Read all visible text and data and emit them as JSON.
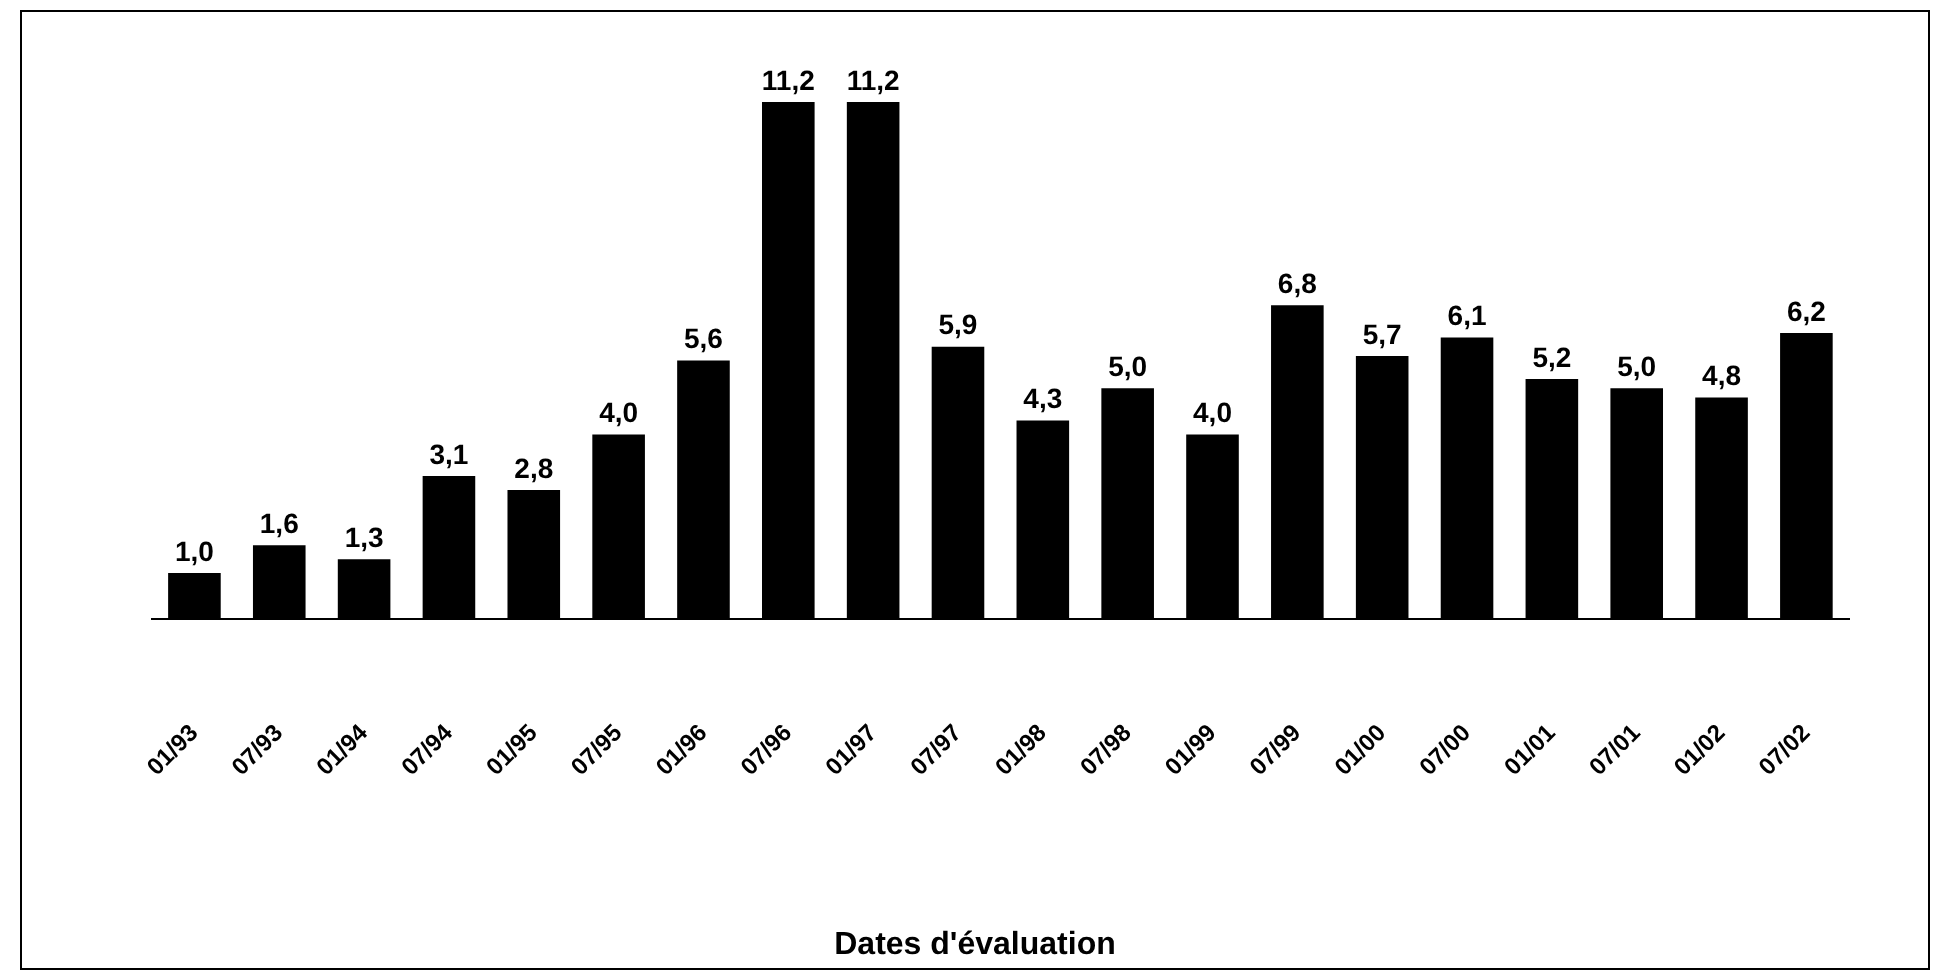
{
  "chart_data": {
    "type": "bar",
    "xlabel": "Dates d'évaluation",
    "categories": [
      "01/93",
      "07/93",
      "01/94",
      "07/94",
      "01/95",
      "07/95",
      "01/96",
      "07/96",
      "01/97",
      "07/97",
      "01/98",
      "07/98",
      "01/99",
      "07/99",
      "01/00",
      "07/00",
      "01/01",
      "07/01",
      "01/02",
      "07/02"
    ],
    "values": [
      1.0,
      1.6,
      1.3,
      3.1,
      2.8,
      4.0,
      5.6,
      11.2,
      11.2,
      5.9,
      4.3,
      5.0,
      4.0,
      6.8,
      5.7,
      6.1,
      5.2,
      5.0,
      4.8,
      6.2
    ],
    "value_labels": [
      "1,0",
      "1,6",
      "1,3",
      "3,1",
      "2,8",
      "4,0",
      "5,6",
      "11,2",
      "11,2",
      "5,9",
      "4,3",
      "5,0",
      "4,0",
      "6,8",
      "5,7",
      "6,1",
      "5,2",
      "5,0",
      "4,8",
      "6,2"
    ],
    "color": "#000000",
    "grid": false,
    "legend": false
  }
}
